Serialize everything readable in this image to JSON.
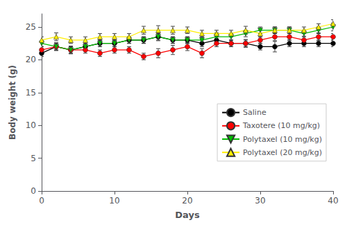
{
  "chart_data": {
    "type": "line",
    "xlabel": "Days",
    "ylabel": "Body weight (g)",
    "x": [
      0,
      2,
      4,
      6,
      8,
      10,
      12,
      14,
      16,
      18,
      20,
      22,
      24,
      26,
      28,
      30,
      32,
      34,
      36,
      38,
      40
    ],
    "series": [
      {
        "name": "Saline",
        "color": "#000000",
        "marker": "circle",
        "values": [
          21.0,
          22.0,
          21.5,
          22.0,
          22.5,
          22.5,
          23.0,
          23.0,
          23.5,
          23.0,
          23.0,
          22.5,
          23.0,
          22.5,
          22.5,
          22.0,
          22.0,
          22.5,
          22.5,
          22.5,
          22.5
        ],
        "errors": [
          0.5,
          0.5,
          0.5,
          0.5,
          0.5,
          0.5,
          0.5,
          0.5,
          0.5,
          0.5,
          0.5,
          0.5,
          0.5,
          0.5,
          0.5,
          0.5,
          0.8,
          0.5,
          0.5,
          0.5,
          0.5
        ]
      },
      {
        "name": "Taxotere (10 mg/kg)",
        "color": "#ff0000",
        "marker": "circle",
        "values": [
          21.5,
          22.0,
          21.5,
          21.5,
          21.0,
          21.5,
          21.5,
          20.5,
          21.0,
          21.5,
          22.0,
          21.0,
          22.5,
          22.5,
          22.5,
          23.0,
          23.5,
          23.5,
          23.0,
          23.5,
          23.5
        ],
        "errors": [
          0.5,
          0.6,
          0.6,
          0.5,
          0.5,
          0.5,
          0.5,
          0.5,
          0.7,
          0.7,
          0.6,
          0.7,
          0.5,
          0.5,
          0.6,
          0.5,
          0.6,
          0.5,
          0.6,
          0.6,
          0.5
        ]
      },
      {
        "name": "Polytaxel (10 mg/kg)",
        "color": "#00bb00",
        "marker": "triangle_down",
        "values": [
          22.5,
          22.0,
          21.5,
          22.0,
          22.5,
          22.5,
          23.0,
          23.0,
          23.5,
          23.0,
          23.0,
          23.0,
          23.5,
          23.5,
          24.0,
          24.5,
          24.5,
          24.5,
          24.0,
          24.5,
          25.0
        ],
        "errors": [
          0.5,
          0.5,
          0.5,
          0.5,
          0.5,
          0.5,
          0.5,
          0.5,
          0.6,
          0.5,
          0.5,
          0.5,
          0.6,
          0.5,
          0.5,
          0.5,
          0.5,
          0.5,
          0.5,
          0.5,
          0.6
        ]
      },
      {
        "name": "Polytaxel (20 mg/kg)",
        "color": "#ffee00",
        "marker": "triangle_up",
        "values": [
          23.0,
          23.5,
          23.0,
          23.0,
          23.5,
          23.5,
          23.5,
          24.5,
          24.5,
          24.5,
          24.5,
          24.0,
          24.0,
          24.0,
          24.5,
          24.0,
          24.5,
          24.5,
          24.5,
          25.0,
          25.5
        ],
        "errors": [
          0.5,
          0.6,
          0.5,
          0.5,
          0.5,
          0.5,
          0.5,
          0.6,
          0.7,
          0.6,
          0.5,
          0.5,
          0.5,
          0.5,
          0.6,
          0.5,
          0.5,
          0.5,
          0.5,
          0.5,
          0.6
        ]
      }
    ],
    "xlim": [
      0,
      40
    ],
    "xticks": [
      0,
      10,
      20,
      30,
      40
    ],
    "ylim": [
      0,
      27
    ],
    "yticks": [
      0,
      5,
      10,
      15,
      20,
      25
    ],
    "grid": false,
    "legend": "right"
  }
}
